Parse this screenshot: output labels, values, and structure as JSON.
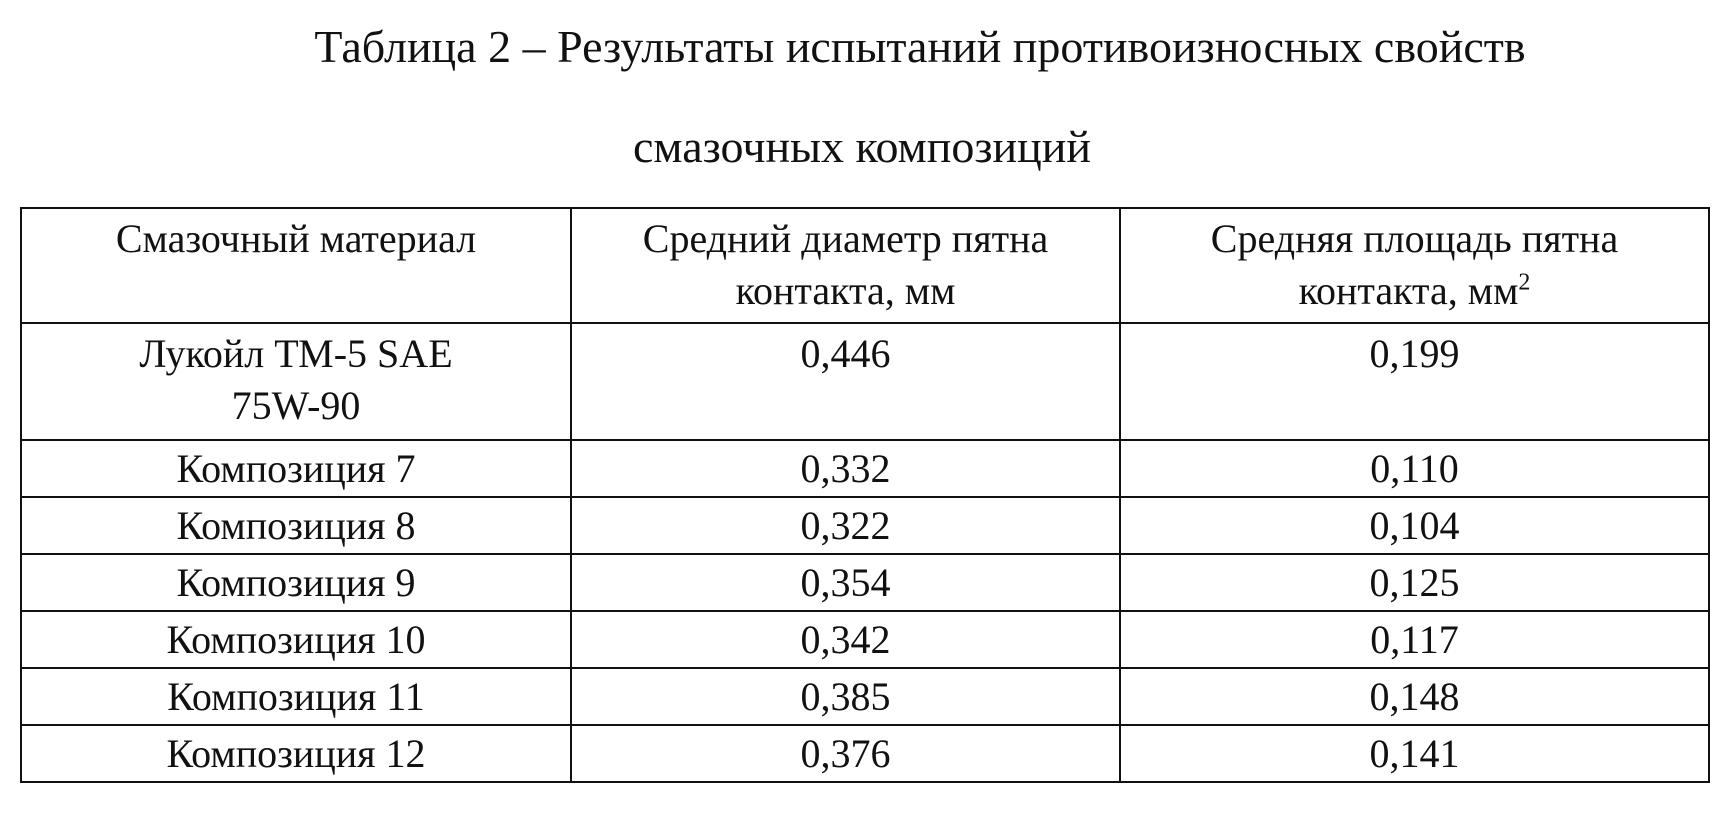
{
  "title": {
    "line1": "Таблица 2 – Результаты испытаний противоизносных свойств",
    "line2": "смазочных композиций"
  },
  "table": {
    "headers": [
      "Смазочный материал",
      "Средний диаметр пятна контакта, мм",
      "Средняя площадь пятна контакта, мм",
      "2"
    ],
    "rows": [
      {
        "material": "Лукойл ТМ-5 SAE 75W-90",
        "diameter": "0,446",
        "area": "0,199"
      },
      {
        "material": "Композиция 7",
        "diameter": "0,332",
        "area": "0,110"
      },
      {
        "material": "Композиция 8",
        "diameter": "0,322",
        "area": "0,104"
      },
      {
        "material": "Композиция 9",
        "diameter": "0,354",
        "area": "0,125"
      },
      {
        "material": "Композиция 10",
        "diameter": "0,342",
        "area": "0,117"
      },
      {
        "material": "Композиция 11",
        "diameter": "0,385",
        "area": "0,148"
      },
      {
        "material": "Композиция 12",
        "diameter": "0,376",
        "area": "0,141"
      }
    ]
  }
}
